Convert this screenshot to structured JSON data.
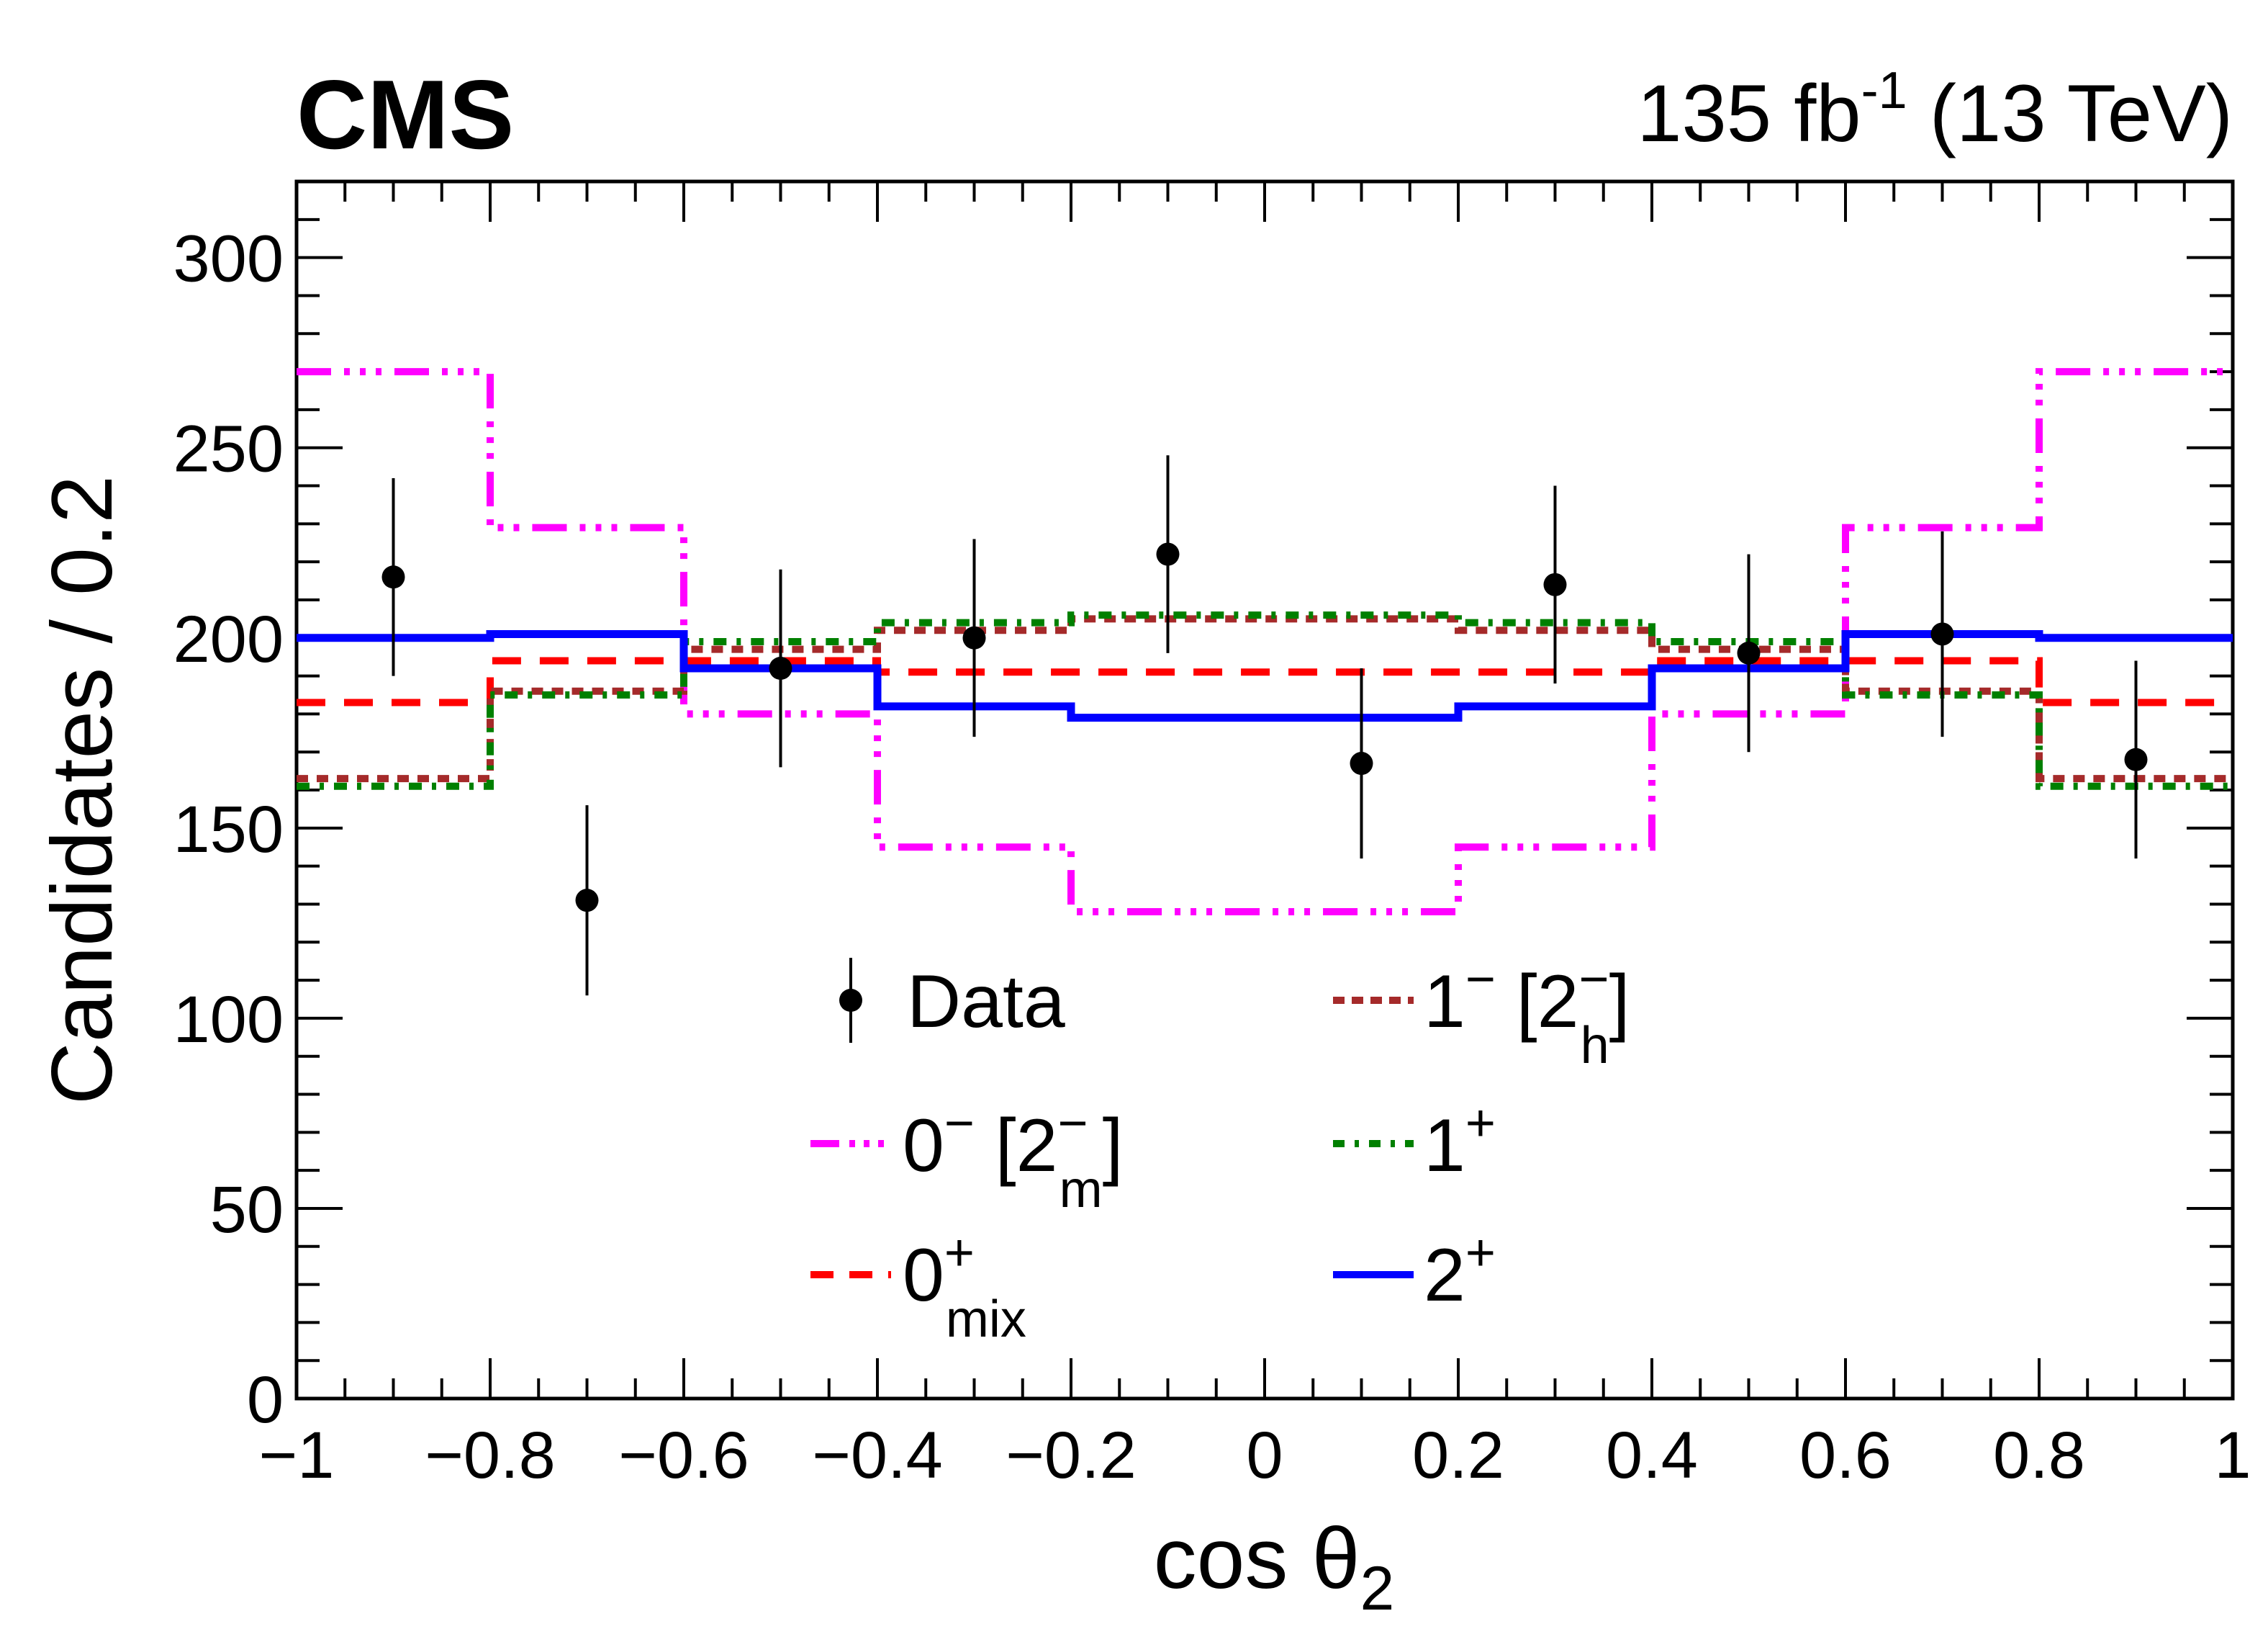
{
  "header": {
    "experiment": "CMS",
    "lumi_value": "135 fb",
    "lumi_exponent": "-1",
    "energy": " (13 TeV)"
  },
  "chart_data": {
    "type": "histogram",
    "xlabel_main": "cos θ",
    "xlabel_sub": "2",
    "ylabel": "Candidates / 0.2",
    "xlim": [
      -1,
      1
    ],
    "ylim": [
      0,
      320
    ],
    "x_ticks": [
      -1,
      -0.8,
      -0.6,
      -0.4,
      -0.2,
      0,
      0.2,
      0.4,
      0.6,
      0.8,
      1
    ],
    "x_tick_labels": [
      "−1",
      "−0.8",
      "−0.6",
      "−0.4",
      "−0.2",
      "0",
      "0.2",
      "0.4",
      "0.6",
      "0.8",
      "1"
    ],
    "y_ticks": [
      0,
      50,
      100,
      150,
      200,
      250,
      300
    ],
    "y_tick_labels": [
      "0",
      "50",
      "100",
      "150",
      "200",
      "250",
      "300"
    ],
    "bin_edges": [
      -1,
      -0.8,
      -0.6,
      -0.4,
      -0.2,
      0,
      0.2,
      0.4,
      0.6,
      0.8,
      1
    ],
    "data": {
      "x": [
        -0.9,
        -0.7,
        -0.5,
        -0.3,
        -0.1,
        0.1,
        0.3,
        0.5,
        0.7,
        0.9
      ],
      "y": [
        216,
        131,
        192,
        200,
        222,
        167,
        214,
        196,
        201,
        168
      ],
      "err": [
        26,
        25,
        26,
        26,
        26,
        25,
        26,
        26,
        27,
        26
      ]
    },
    "series": [
      {
        "id": "s0m",
        "color": "#ff00ff",
        "dash": "48,18,8,14,8,14,8,18",
        "values": [
          270,
          229,
          180,
          145,
          128,
          128,
          145,
          180,
          229,
          270
        ]
      },
      {
        "id": "s0mix",
        "color": "#ff0000",
        "dash": "40,26",
        "values": [
          183,
          194,
          194,
          191,
          191,
          191,
          191,
          194,
          194,
          183
        ]
      },
      {
        "id": "s1m",
        "color": "#a52a2a",
        "dash": "16,12",
        "values": [
          163,
          186,
          197,
          202,
          205,
          205,
          202,
          197,
          186,
          163
        ]
      },
      {
        "id": "s1p",
        "color": "#008000",
        "dash": "18,14,6,14",
        "values": [
          161,
          185,
          199,
          204,
          206,
          206,
          204,
          199,
          185,
          161
        ]
      },
      {
        "id": "s2p",
        "color": "#0000ff",
        "dash": "",
        "values": [
          200,
          201,
          192,
          182,
          179,
          179,
          182,
          192,
          201,
          200
        ]
      }
    ],
    "legend": {
      "data": "Data",
      "s0m": {
        "main": "0",
        "sup": "−",
        "rest": " [2",
        "rest_sup": "−",
        "rest_sub": "m",
        "close": "]"
      },
      "s0mix": {
        "main": "0",
        "sup": "+",
        "sub": "mix"
      },
      "s1m": {
        "main": "1",
        "sup": "−",
        "rest": " [2",
        "rest_sup": "−",
        "rest_sub": "h",
        "close": "]"
      },
      "s1p": {
        "main": "1",
        "sup": "+"
      },
      "s2p": {
        "main": "2",
        "sup": "+"
      }
    }
  }
}
